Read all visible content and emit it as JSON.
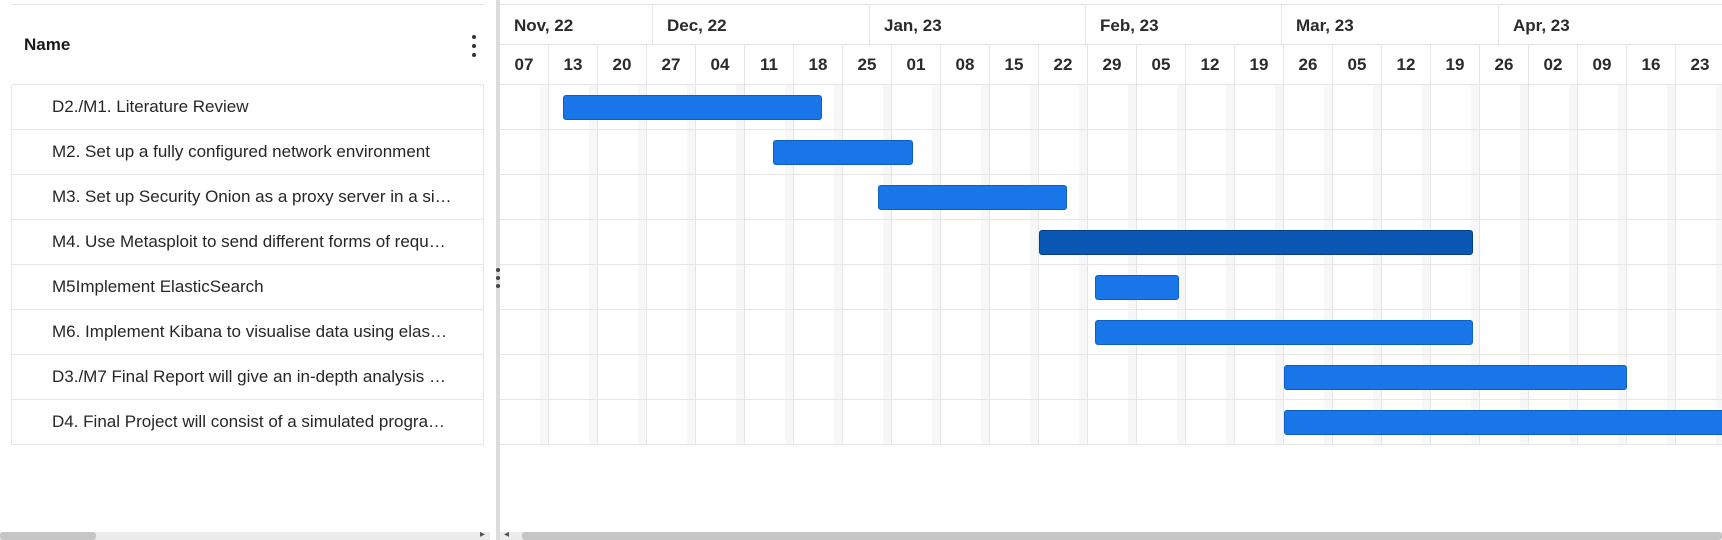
{
  "grid": {
    "name_header": "Name",
    "menu_icon": "kebab-vertical-icon",
    "rows": [
      {
        "label": "D2./M1. Literature Review"
      },
      {
        "label": "M2. Set up a fully configured network environment"
      },
      {
        "label": "M3. Set up Security Onion as a proxy server in a si…"
      },
      {
        "label": "M4. Use Metasploit to send different forms of requ…"
      },
      {
        "label": "M5Implement ElasticSearch"
      },
      {
        "label": " M6. Implement Kibana to visualise data using elas…"
      },
      {
        "label": "D3./M7 Final Report will give an in-depth analysis …"
      },
      {
        "label": "D4. Final Project will consist of a simulated progra…"
      }
    ]
  },
  "timeline": {
    "months": [
      "Nov, 22",
      "Dec, 22",
      "Jan, 23",
      "Feb, 23",
      "Mar, 23",
      "Apr, 23"
    ],
    "weeks": [
      "07",
      "13",
      "20",
      "27",
      "04",
      "11",
      "18",
      "25",
      "01",
      "08",
      "15",
      "22",
      "29",
      "05",
      "12",
      "19",
      "26",
      "05",
      "12",
      "19",
      "26",
      "02",
      "09",
      "16",
      "23"
    ]
  },
  "tasks": [
    {
      "start": "2022-11-13",
      "end": "2022-12-20",
      "selected": false
    },
    {
      "start": "2022-12-13",
      "end": "2023-01-02",
      "selected": false
    },
    {
      "start": "2022-12-28",
      "end": "2023-01-24",
      "selected": false
    },
    {
      "start": "2023-01-20",
      "end": "2023-03-23",
      "selected": true
    },
    {
      "start": "2023-01-28",
      "end": "2023-02-09",
      "selected": false
    },
    {
      "start": "2023-01-28",
      "end": "2023-03-23",
      "selected": false
    },
    {
      "start": "2023-02-24",
      "end": "2023-04-14",
      "selected": false
    },
    {
      "start": "2023-02-24",
      "end": "2023-04-30",
      "selected": false
    }
  ],
  "colors": {
    "bar": "#1976e8",
    "bar_border": "#0d5fc2",
    "bar_selected": "#0a58b4",
    "grid_line": "#e6e6e6"
  }
}
